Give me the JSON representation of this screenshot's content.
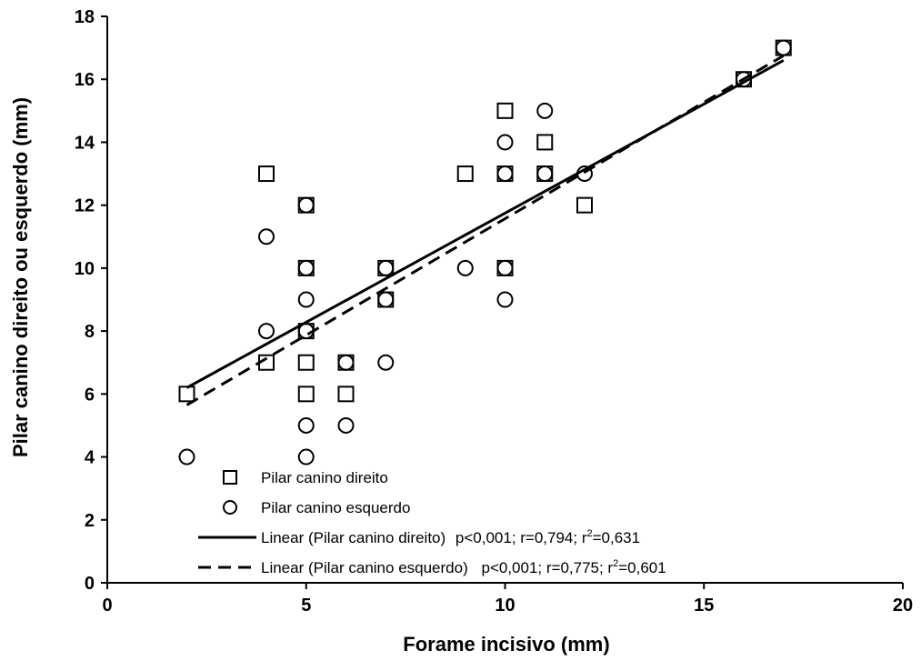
{
  "chart_data": {
    "type": "scatter",
    "xlabel": "Forame incisivo (mm)",
    "ylabel": "Pilar canino direito ou esquerdo (mm)",
    "xlim": [
      0,
      20
    ],
    "ylim": [
      0,
      18
    ],
    "x_ticks": [
      "0",
      "5",
      "10",
      "15",
      "20"
    ],
    "y_ticks": [
      "0",
      "2",
      "4",
      "6",
      "8",
      "10",
      "12",
      "14",
      "16",
      "18"
    ],
    "grid": false,
    "legend_position": "bottom-left",
    "series": [
      {
        "name": "Pilar canino direito",
        "marker": "square",
        "points": [
          [
            2,
            6
          ],
          [
            4,
            13
          ],
          [
            4,
            7
          ],
          [
            5,
            12
          ],
          [
            5,
            10
          ],
          [
            5,
            8
          ],
          [
            5,
            7
          ],
          [
            5,
            6
          ],
          [
            6,
            7
          ],
          [
            6,
            6
          ],
          [
            7,
            10
          ],
          [
            7,
            9
          ],
          [
            9,
            13
          ],
          [
            10,
            15
          ],
          [
            10,
            13
          ],
          [
            10,
            10
          ],
          [
            11,
            14
          ],
          [
            11,
            13
          ],
          [
            12,
            12
          ],
          [
            16,
            16
          ],
          [
            17,
            17
          ]
        ]
      },
      {
        "name": "Pilar canino esquerdo",
        "marker": "circle",
        "points": [
          [
            2,
            4
          ],
          [
            4,
            11
          ],
          [
            4,
            8
          ],
          [
            5,
            12
          ],
          [
            5,
            10
          ],
          [
            5,
            9
          ],
          [
            5,
            8
          ],
          [
            5,
            5
          ],
          [
            5,
            4
          ],
          [
            6,
            7
          ],
          [
            6,
            5
          ],
          [
            7,
            10
          ],
          [
            7,
            9
          ],
          [
            7,
            7
          ],
          [
            9,
            10
          ],
          [
            10,
            14
          ],
          [
            10,
            13
          ],
          [
            10,
            10
          ],
          [
            10,
            9
          ],
          [
            11,
            15
          ],
          [
            11,
            13
          ],
          [
            12,
            13
          ],
          [
            16,
            16
          ],
          [
            17,
            17
          ]
        ]
      }
    ],
    "trendlines": [
      {
        "name": "Linear (Pilar canino direito)",
        "style": "solid",
        "x": [
          2,
          17
        ],
        "y": [
          6.2,
          16.6
        ],
        "stats": "p<0,001; r=0,794; r",
        "stats_sup": "2",
        "stats_end": "=0,631"
      },
      {
        "name": "Linear (Pilar canino esquerdo)",
        "style": "dashed",
        "x": [
          2,
          17
        ],
        "y": [
          5.65,
          16.75
        ],
        "stats": "p<0,001; r=0,775; r",
        "stats_sup": "2",
        "stats_end": "=0,601"
      }
    ]
  }
}
